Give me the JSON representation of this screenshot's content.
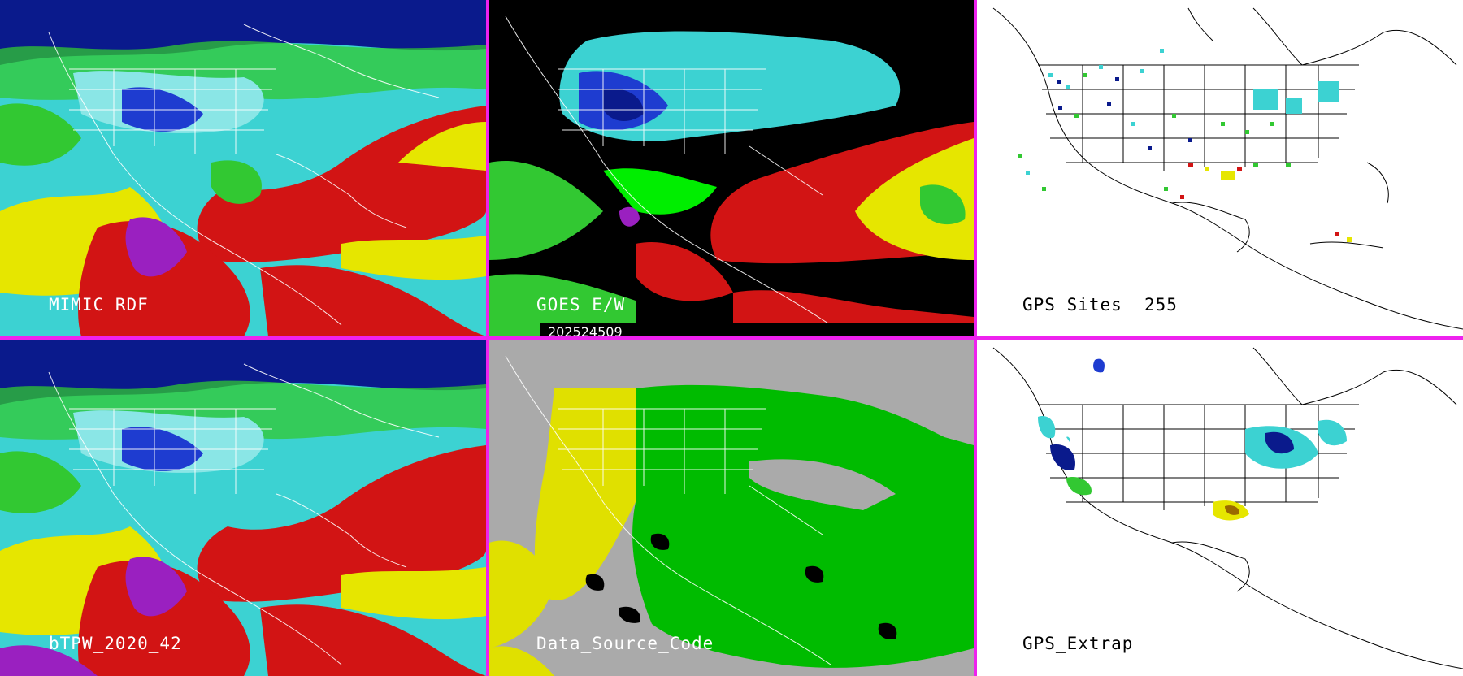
{
  "panels": [
    {
      "id": "mimic",
      "label": "MIMIC_RDF"
    },
    {
      "id": "goes",
      "label": "GOES_E/W"
    },
    {
      "id": "gps-sites",
      "label": "GPS Sites",
      "count": "255"
    },
    {
      "id": "btpw",
      "label": "bTPW_2020_42"
    },
    {
      "id": "dsc",
      "label": "Data_Source_Code"
    },
    {
      "id": "gps-extrap",
      "label": "GPS_Extrap"
    }
  ],
  "timestamp": "202524509",
  "colors": {
    "separator": "#ee22ee",
    "navy": "#0a1a8c",
    "blue": "#1e3cd0",
    "cyan": "#3cd2d2",
    "lightcyan": "#8ae6e6",
    "green": "#32c832",
    "lime": "#00ee00",
    "yellow": "#e6e600",
    "red": "#d21414",
    "purple": "#9a20c0",
    "gray": "#aaaaaa",
    "dsc_green": "#00bb00",
    "dsc_yellow": "#e0e000"
  }
}
